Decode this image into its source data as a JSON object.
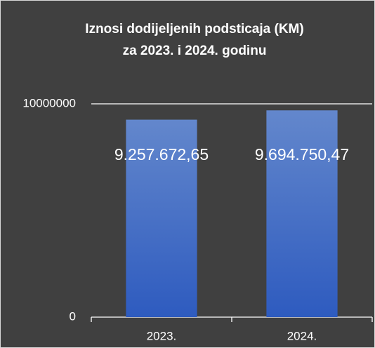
{
  "chart_data": {
    "type": "bar",
    "title": [
      "Iznosi dodijeljenih podsticaja (KM)",
      "za 2023. i 2024. godinu"
    ],
    "categories": [
      "2023.",
      "2024."
    ],
    "values": [
      9257672.65,
      9694750.47
    ],
    "value_labels": [
      "9.257.672,65",
      "9.694.750,47"
    ],
    "color": "#4472c4",
    "ylim": [
      0,
      10000000
    ],
    "yticks": [
      0,
      10000000
    ],
    "grid": true
  }
}
